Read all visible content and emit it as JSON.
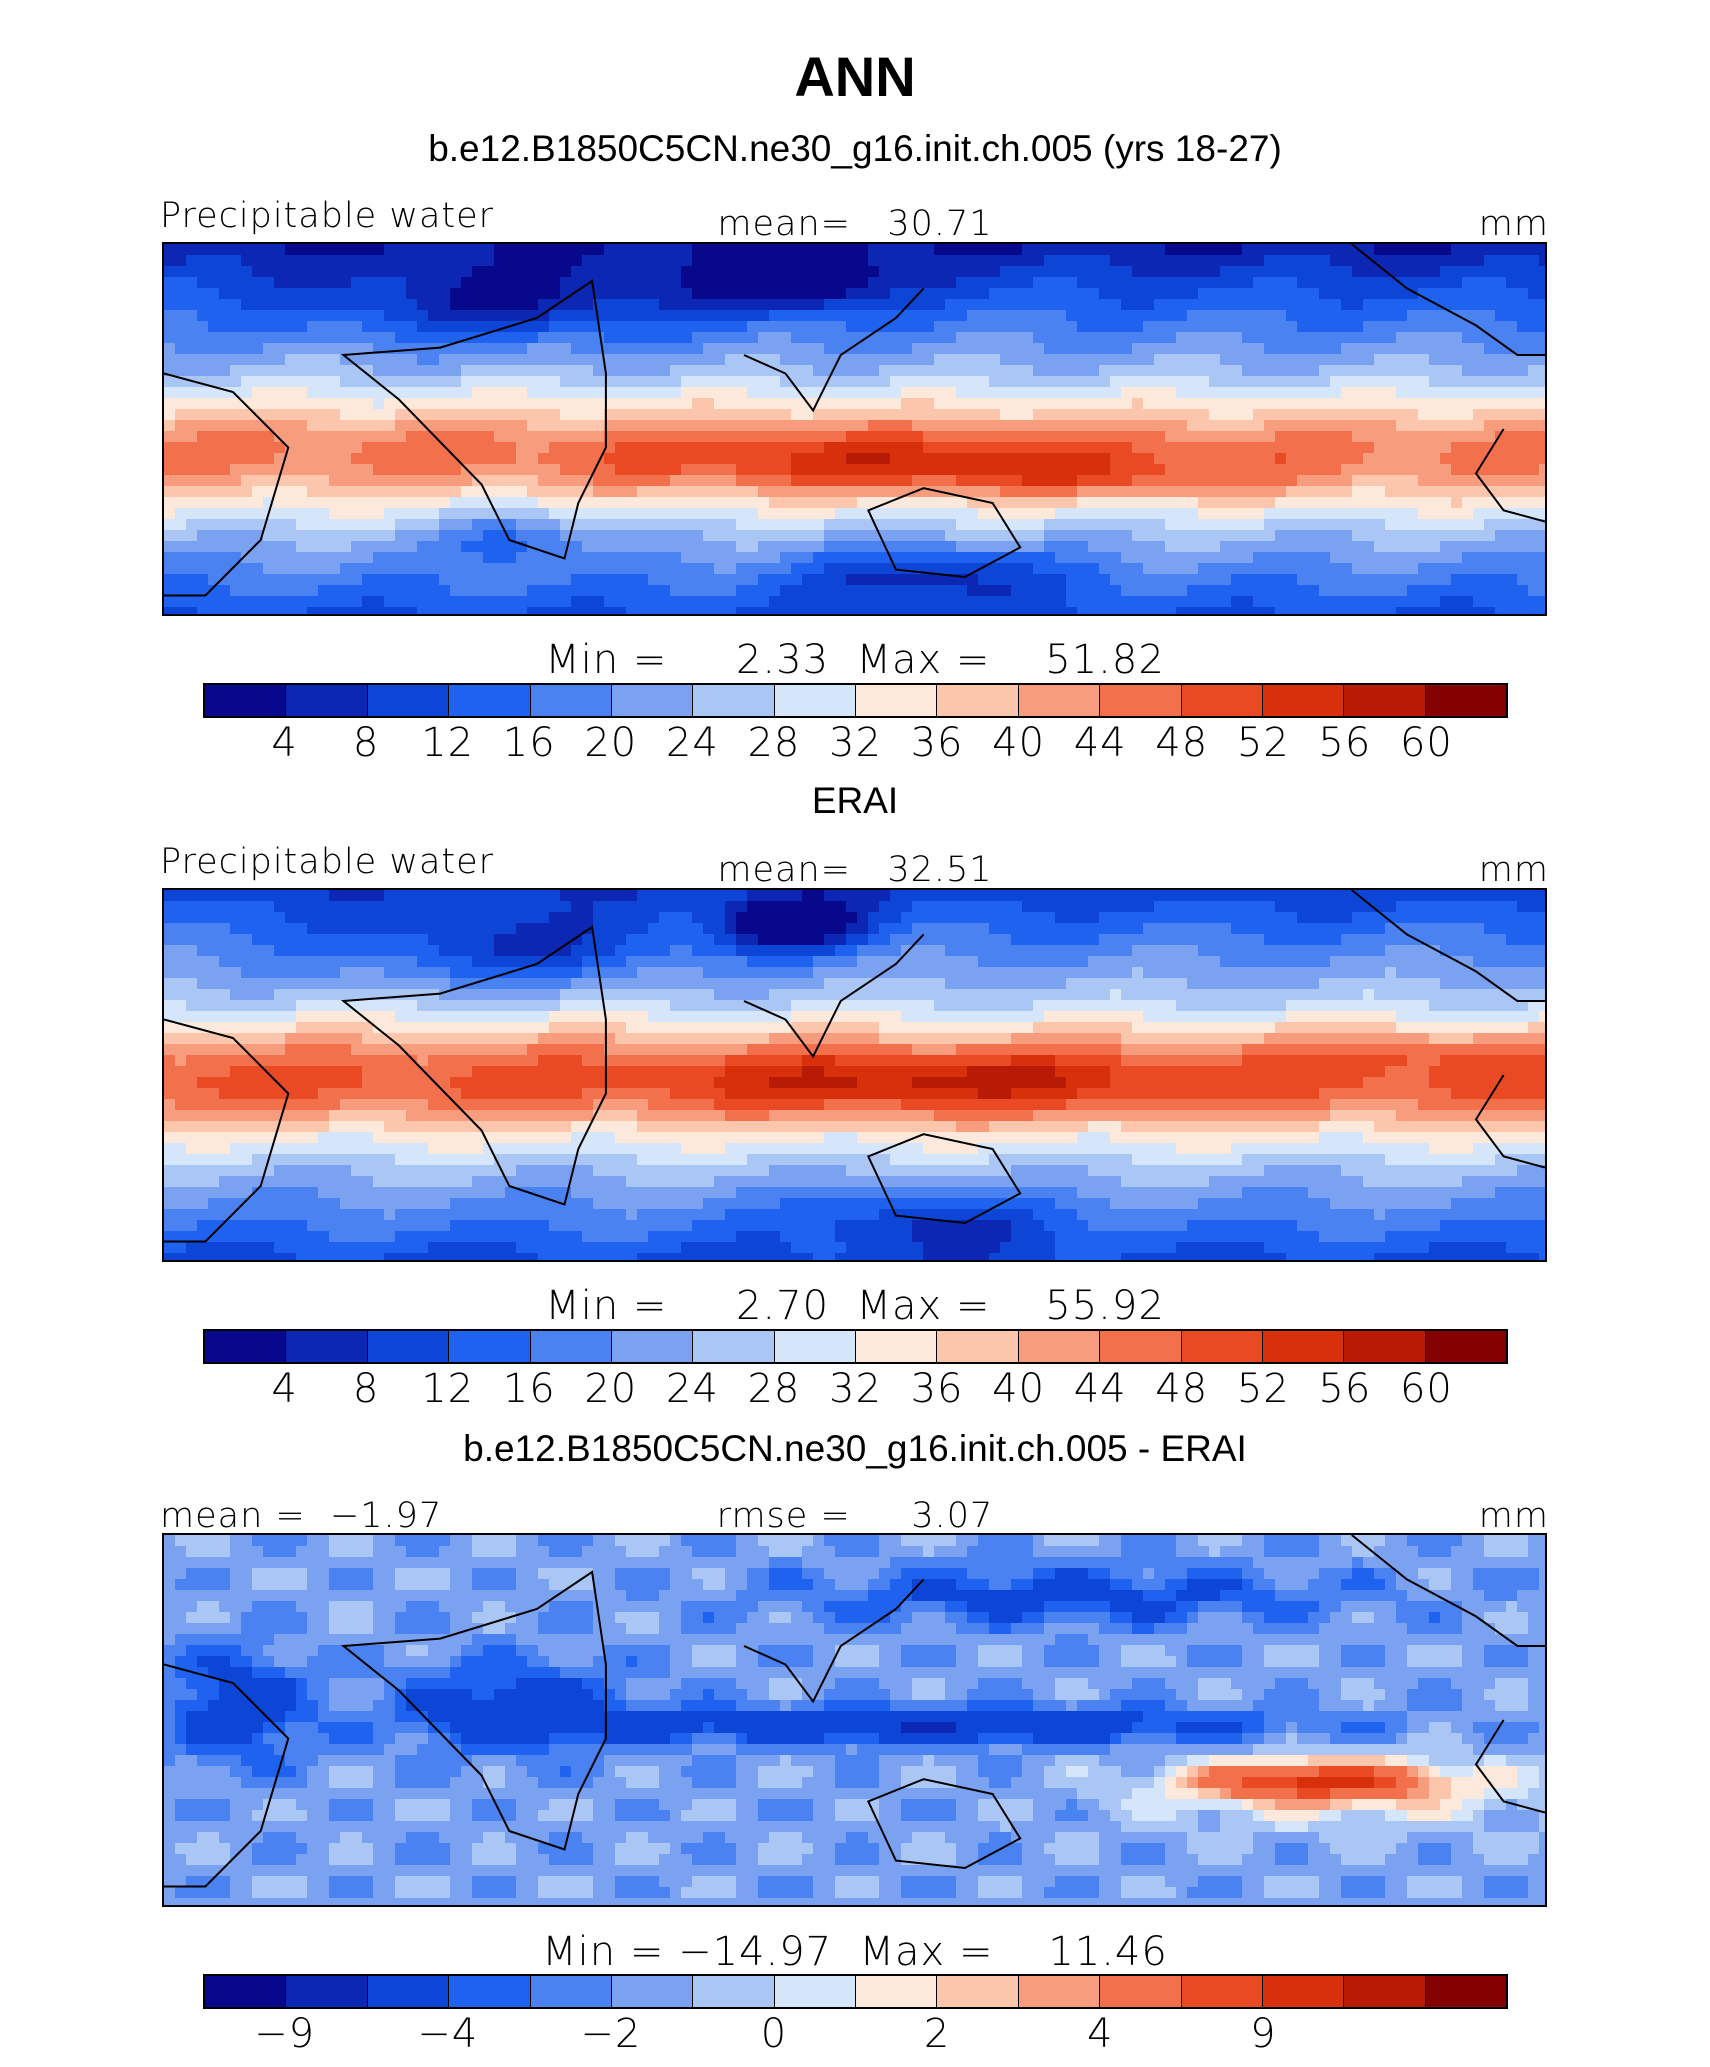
{
  "main_title": "ANN",
  "palette": [
    "#08088c",
    "#0b27b4",
    "#0d45d6",
    "#1f62f0",
    "#4a82f2",
    "#7ba2f1",
    "#a9c6f5",
    "#d6e6fa",
    "#fde9dc",
    "#fbc6ab",
    "#f79c7d",
    "#f3704d",
    "#ea4a23",
    "#d8300b",
    "#b81a06",
    "#850000"
  ],
  "panels": [
    {
      "title": "b.e12.B1850C5CN.ne30_g16.init.ch.005 (yrs 18-27)",
      "left_label": "Precipitable water",
      "center_label": "mean=   30.71",
      "right_label": "mm",
      "minmax": "Min =     2.33  Max =    51.82",
      "ticks": [
        "4",
        "8",
        "12",
        "16",
        "20",
        "24",
        "28",
        "32",
        "36",
        "40",
        "44",
        "48",
        "52",
        "56",
        "60"
      ],
      "field": "model"
    },
    {
      "title": "ERAI",
      "left_label": "Precipitable water",
      "center_label": "mean=   32.51",
      "right_label": "mm",
      "minmax": "Min =     2.70  Max =    55.92",
      "ticks": [
        "4",
        "8",
        "12",
        "16",
        "20",
        "24",
        "28",
        "32",
        "36",
        "40",
        "44",
        "48",
        "52",
        "56",
        "60"
      ],
      "field": "obs"
    },
    {
      "title": "b.e12.B1850C5CN.ne30_g16.init.ch.005 - ERAI",
      "left_label": "mean =  −1.97",
      "center_label": "rmse =     3.07",
      "right_label": "mm",
      "minmax": "Min = −14.97  Max =    11.46",
      "ticks": [
        "−9",
        "",
        "−4",
        "",
        "−2",
        "",
        "0",
        "",
        "2",
        "",
        "4",
        "",
        "9",
        "",
        ""
      ],
      "field": "diff"
    }
  ]
}
